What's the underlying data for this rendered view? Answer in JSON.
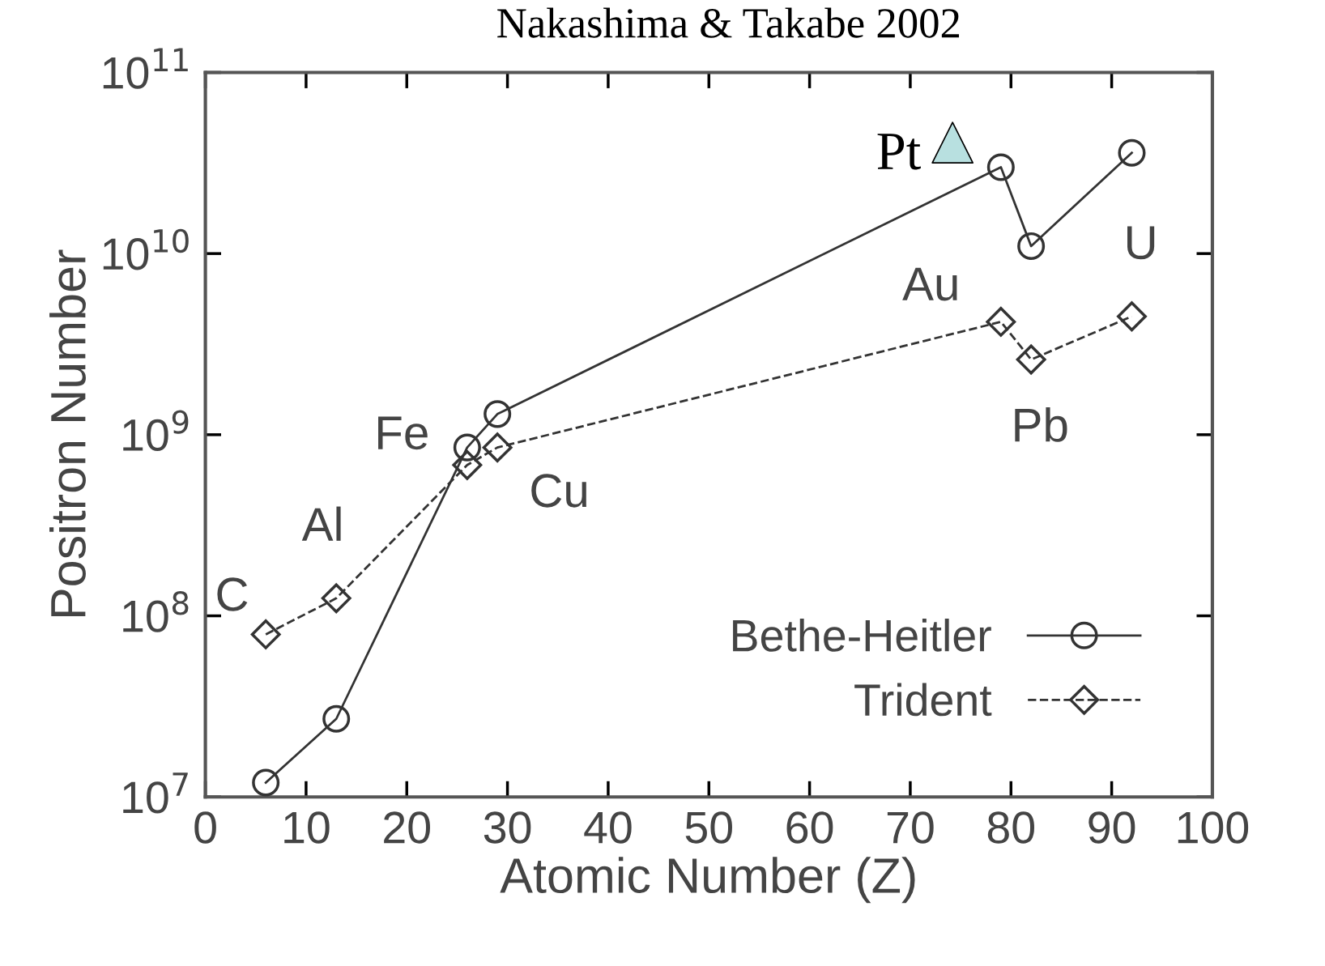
{
  "chart_data": {
    "type": "line",
    "title": "Nakashima & Takabe 2002",
    "xlabel": "Atomic Number (Z)",
    "ylabel": "Positron Number",
    "x": [
      6,
      13,
      26,
      29,
      79,
      82,
      92
    ],
    "series": [
      {
        "name": "Bethe-Heitler",
        "color": "#333333",
        "values": [
          12000000.0,
          27000000.0,
          850000000.0,
          1300000000.0,
          30000000000.0,
          11000000000.0,
          36000000000.0
        ],
        "marker": "circle",
        "line_style": "solid"
      },
      {
        "name": "Trident",
        "color": "#333333",
        "values": [
          79000000.0,
          125000000.0,
          680000000.0,
          850000000.0,
          4200000000.0,
          2600000000.0,
          4500000000.0
        ],
        "marker": "diamond",
        "line_style": "dashed"
      },
      {
        "type": "scatter",
        "x": [
          74.2
        ],
        "color": "#b8e0e0",
        "values": [
          41000000000.0
        ],
        "marker": "triangle"
      }
    ],
    "annotations": [
      {
        "text": "C",
        "x": 6,
        "y": 79000000.0
      },
      {
        "text": "Al",
        "x": 13,
        "y": 125000000.0
      },
      {
        "text": "Fe",
        "x": 26,
        "y": 680000000.0
      },
      {
        "text": "Cu",
        "x": 29,
        "y": 850000000.0
      },
      {
        "text": "Au",
        "x": 79,
        "y": 4200000000.0
      },
      {
        "text": "Pb",
        "x": 82,
        "y": 2600000000.0
      },
      {
        "text": "U",
        "x": 92,
        "y": 4500000000.0
      },
      {
        "text": "Pt",
        "x": 74.2,
        "y": 41000000000.0
      }
    ],
    "log": "y",
    "xlim": [
      0,
      100
    ],
    "ylim": [
      10000000.0,
      100000000000.0
    ],
    "xticks": [
      0,
      10,
      20,
      30,
      40,
      50,
      60,
      70,
      80,
      90,
      100
    ],
    "yticks": [
      {
        "value": 10000000.0,
        "label": "10$^{7}$"
      },
      {
        "value": 100000000.0,
        "label": "10$^{8}$"
      },
      {
        "value": 1000000000.0,
        "label": "10$^{9}$"
      },
      {
        "value": 10000000000.0,
        "label": "10$^{10}$"
      },
      {
        "value": 100000000000.0,
        "label": "10$^{11}$"
      }
    ],
    "grid": false,
    "legend": "bottom right"
  }
}
